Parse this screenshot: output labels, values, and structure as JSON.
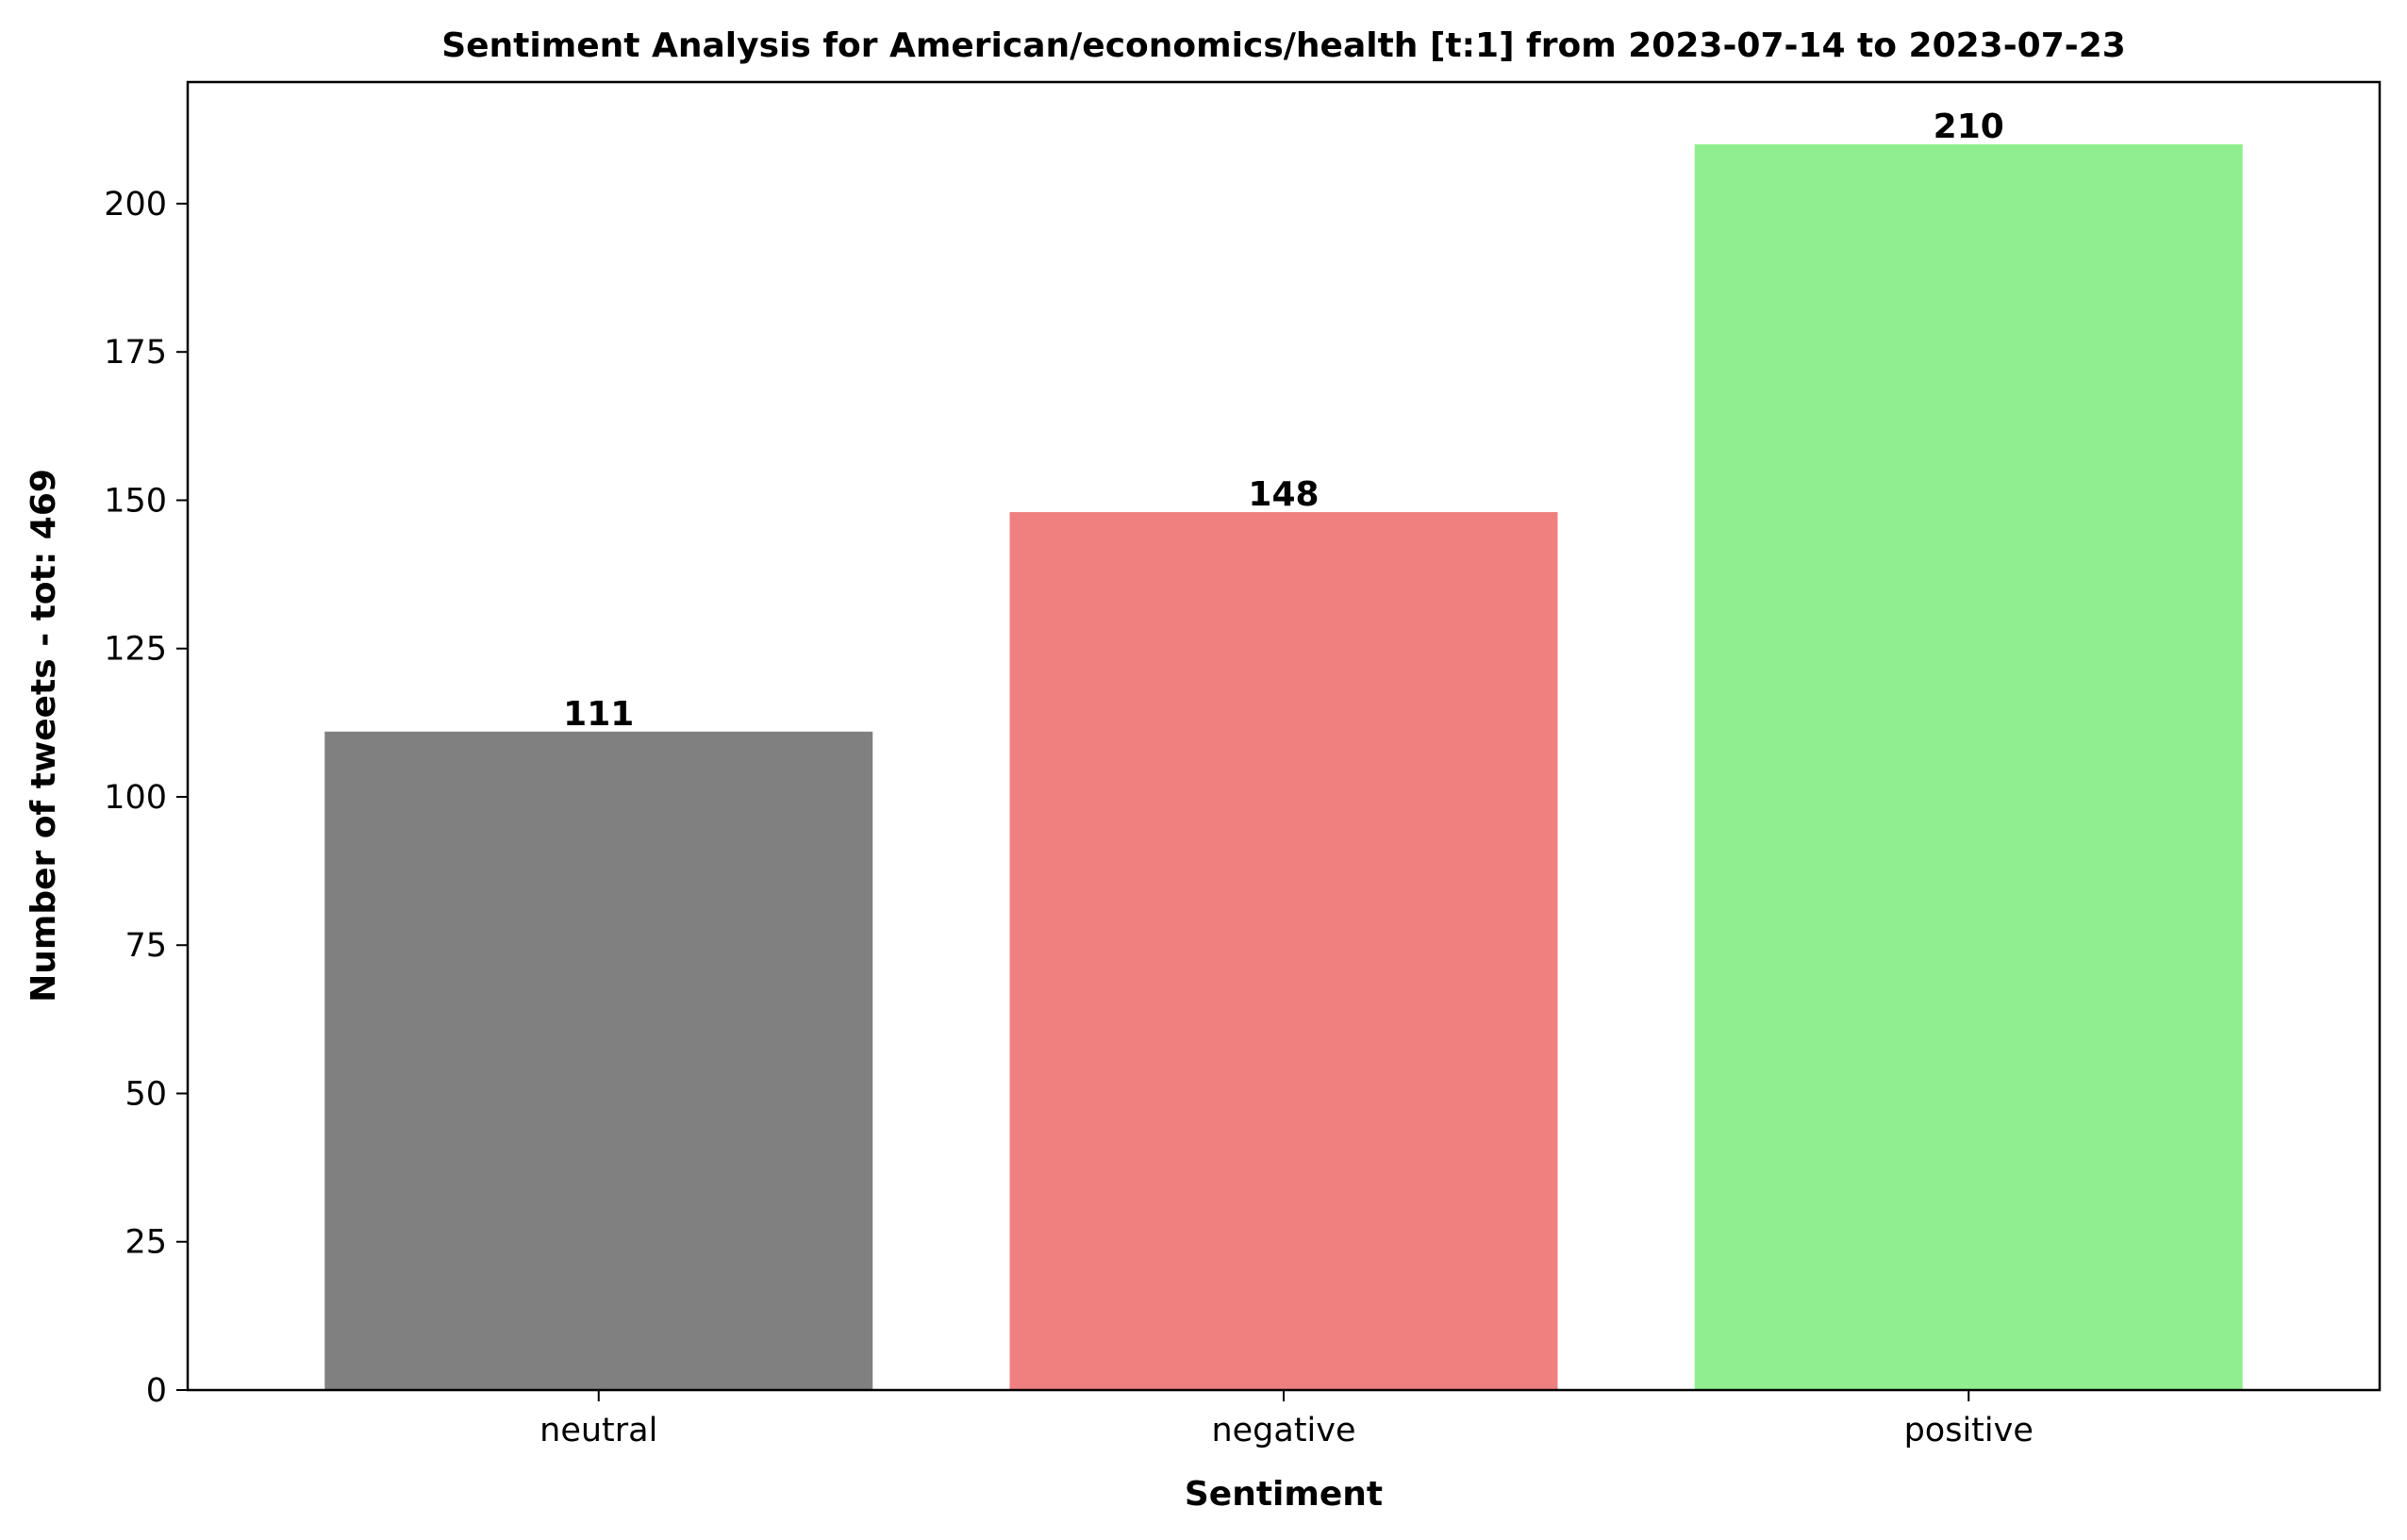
{
  "chart_data": {
    "type": "bar",
    "title": "Sentiment Analysis for American/economics/health [t:1] from 2023-07-14 to 2023-07-23",
    "xlabel": "Sentiment",
    "ylabel": "Number of tweets - tot: 469",
    "categories": [
      "neutral",
      "negative",
      "positive"
    ],
    "values": [
      111,
      148,
      210
    ],
    "colors": [
      "#808080",
      "#f08080",
      "#90ee90"
    ],
    "data_labels": [
      "111",
      "148",
      "210"
    ],
    "ylim": [
      0,
      220.5
    ],
    "yticks": [
      0,
      25,
      50,
      75,
      100,
      125,
      150,
      175,
      200
    ],
    "ytick_labels": [
      "0",
      "25",
      "50",
      "75",
      "100",
      "125",
      "150",
      "175",
      "200"
    ],
    "grid": false,
    "legend": "none"
  }
}
